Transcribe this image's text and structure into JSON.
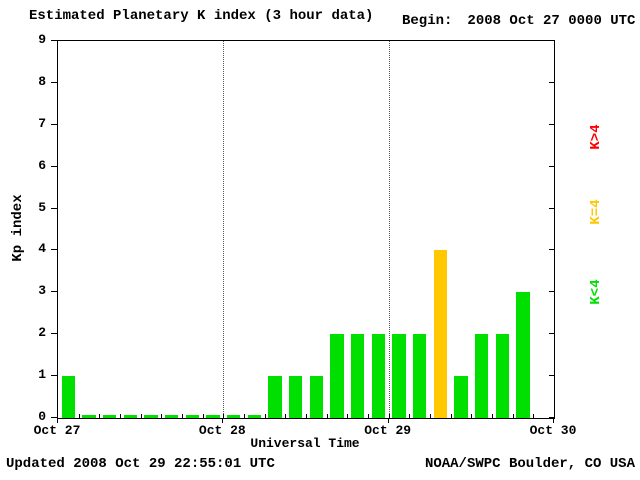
{
  "header": {
    "title": "Estimated Planetary K index (3 hour data)",
    "begin_label": "Begin:",
    "begin_value": "2008 Oct 27 0000 UTC"
  },
  "legend": [
    {
      "label": "K>4",
      "color": "#ff0000"
    },
    {
      "label": "K=4",
      "color": "#ffc800"
    },
    {
      "label": "K<4",
      "color": "#00e000"
    }
  ],
  "footer": {
    "updated": "Updated 2008 Oct 29 22:55:01 UTC",
    "source": "NOAA/SWPC Boulder, CO USA"
  },
  "chart_data": {
    "type": "bar",
    "title": "Estimated Planetary K index (3 hour data)",
    "xlabel": "Universal Time",
    "ylabel": "Kp index",
    "ylim": [
      0,
      9
    ],
    "y_ticks": [
      0,
      1,
      2,
      3,
      4,
      5,
      6,
      7,
      8,
      9
    ],
    "x_tick_labels": [
      "Oct 27",
      "Oct 28",
      "Oct 29",
      "Oct 30"
    ],
    "interval_hours": 3,
    "grid": "vertical-dotted-at-day-boundaries",
    "legend_position": "right",
    "colors": {
      "k_lt_4": "#00e000",
      "k_eq_4": "#ffc800",
      "k_gt_4": "#ff0000"
    },
    "values": [
      1,
      0,
      0,
      0,
      0,
      0,
      0,
      0,
      0,
      0,
      1,
      1,
      1,
      2,
      2,
      2,
      2,
      2,
      4,
      1,
      2,
      2,
      3,
      null
    ]
  }
}
